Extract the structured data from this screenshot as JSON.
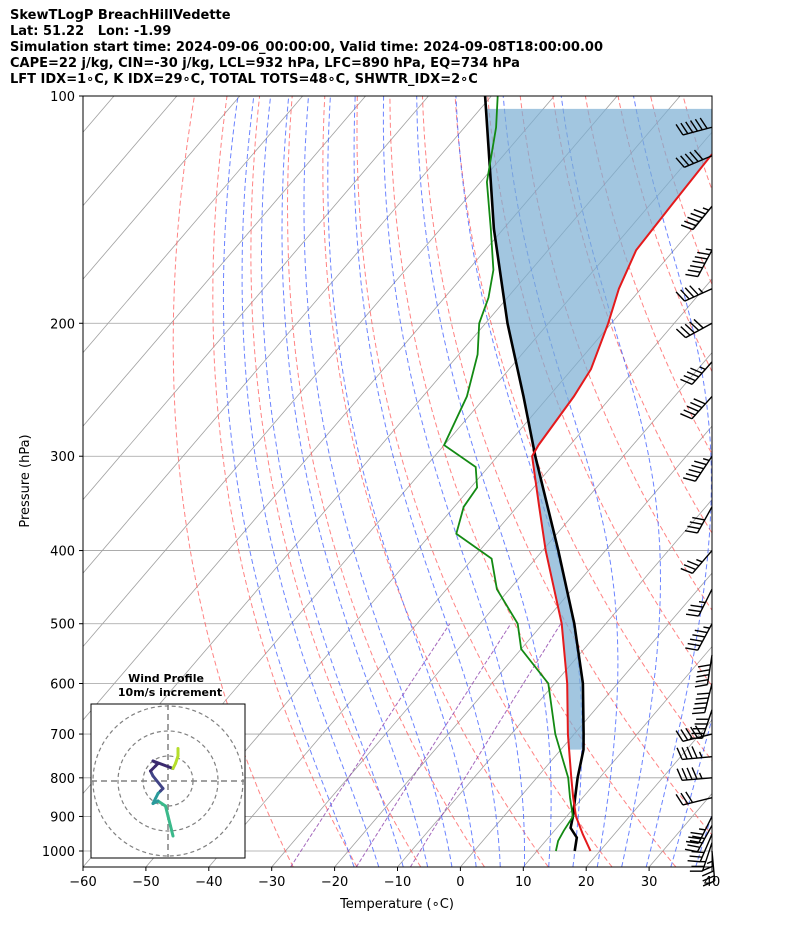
{
  "header": {
    "line1": "SkewTLogP BreachHillVedette",
    "line2": "Lat: 51.22   Lon: -1.99",
    "line3": "Simulation start time: 2024-09-06_00:00:00, Valid time: 2024-09-08T18:00:00.00",
    "line4": "CAPE=22 j/kg, CIN=-30 j/kg, LCL=932 hPa, LFC=890 hPa, EQ=734 hPa",
    "line5": "LFT IDX=1∘C, K IDX=29∘C, TOTAL TOTS=48∘C, SHWTR_IDX=2∘C"
  },
  "chart_data": {
    "type": "line",
    "subtype": "skew-t log-p",
    "xlabel": "Temperature (∘C)",
    "ylabel": "Pressure (hPa)",
    "xlim": [
      -60,
      40
    ],
    "ylim": [
      1050,
      100
    ],
    "x_ticks": [
      -60,
      -50,
      -40,
      -30,
      -20,
      -10,
      0,
      10,
      20,
      30,
      40
    ],
    "x_tick_labels": [
      "−60",
      "−50",
      "−40",
      "−30",
      "−20",
      "−10",
      "0",
      "10",
      "20",
      "30",
      "40"
    ],
    "y_ticks": [
      1000,
      900,
      800,
      700,
      600,
      500,
      400,
      300,
      200,
      100
    ],
    "y_scale": "log",
    "grid": true,
    "colors": {
      "temperature": "#e41a1c",
      "dewpoint": "#138a13",
      "parcel": "#000000",
      "cape_fill": "#7aaed3",
      "dry_adiabat": "#ff5a5a",
      "moist_adiabat": "#3b5bff",
      "mixing_ratio": "#8e44ad",
      "isotherm": "#a0a0a0"
    },
    "series": [
      {
        "key": "temperature",
        "points": [
          [
            1000,
            18.5
          ],
          [
            950,
            15.0
          ],
          [
            900,
            11.5
          ],
          [
            850,
            8.5
          ],
          [
            800,
            5.5
          ],
          [
            700,
            -1.0
          ],
          [
            600,
            -8.0
          ],
          [
            500,
            -17.0
          ],
          [
            400,
            -29.5
          ],
          [
            350,
            -36.5
          ],
          [
            300,
            -44.5
          ],
          [
            290,
            -45.0
          ],
          [
            250,
            -46.0
          ],
          [
            230,
            -47.0
          ],
          [
            200,
            -50.5
          ],
          [
            180,
            -53.5
          ],
          [
            160,
            -56.0
          ],
          [
            140,
            -56.5
          ],
          [
            120,
            -57.0
          ],
          [
            100,
            -56.5
          ]
        ]
      },
      {
        "key": "dewpoint",
        "points": [
          [
            1000,
            13.0
          ],
          [
            970,
            12.0
          ],
          [
            940,
            11.5
          ],
          [
            900,
            11.0
          ],
          [
            850,
            8.0
          ],
          [
            800,
            5.0
          ],
          [
            700,
            -3.0
          ],
          [
            600,
            -11.0
          ],
          [
            540,
            -20.0
          ],
          [
            500,
            -24.0
          ],
          [
            450,
            -32.0
          ],
          [
            410,
            -37.0
          ],
          [
            380,
            -46.0
          ],
          [
            350,
            -48.5
          ],
          [
            330,
            -49.0
          ],
          [
            310,
            -52.0
          ],
          [
            290,
            -60.0
          ],
          [
            250,
            -63.0
          ],
          [
            220,
            -67.0
          ],
          [
            200,
            -71.0
          ],
          [
            185,
            -73.0
          ],
          [
            170,
            -76.0
          ],
          [
            150,
            -82.0
          ],
          [
            130,
            -89.0
          ],
          [
            110,
            -95.0
          ],
          [
            100,
            -99.0
          ]
        ]
      },
      {
        "key": "parcel",
        "points": [
          [
            1000,
            16.0
          ],
          [
            960,
            14.5
          ],
          [
            932,
            12.2
          ],
          [
            900,
            11.0
          ],
          [
            850,
            8.8
          ],
          [
            800,
            6.5
          ],
          [
            734,
            3.6
          ],
          [
            700,
            1.5
          ],
          [
            600,
            -5.5
          ],
          [
            500,
            -15.0
          ],
          [
            400,
            -27.5
          ],
          [
            300,
            -44.0
          ],
          [
            250,
            -54.0
          ],
          [
            200,
            -66.5
          ],
          [
            150,
            -81.5
          ],
          [
            100,
            -101.0
          ]
        ]
      }
    ],
    "cape_region": "between parcel and temperature above EQ",
    "wind_barbs": [
      {
        "p": 1000,
        "u": 2,
        "v": -22
      },
      {
        "p": 975,
        "u": -4,
        "v": -12
      },
      {
        "p": 950,
        "u": -6,
        "v": -14
      },
      {
        "p": 925,
        "u": -10,
        "v": -18
      },
      {
        "p": 900,
        "u": -8,
        "v": -16
      },
      {
        "p": 850,
        "u": -16,
        "v": -4
      },
      {
        "p": 800,
        "u": -24,
        "v": -2
      },
      {
        "p": 750,
        "u": -22,
        "v": -2
      },
      {
        "p": 700,
        "u": -24,
        "v": -6
      },
      {
        "p": 650,
        "u": -8,
        "v": -24
      },
      {
        "p": 600,
        "u": -6,
        "v": -24
      },
      {
        "p": 550,
        "u": -4,
        "v": -26
      },
      {
        "p": 500,
        "u": -14,
        "v": -26
      },
      {
        "p": 450,
        "u": -8,
        "v": -16
      },
      {
        "p": 400,
        "u": -12,
        "v": -14
      },
      {
        "p": 350,
        "u": -10,
        "v": -18
      },
      {
        "p": 300,
        "u": -16,
        "v": -24
      },
      {
        "p": 250,
        "u": -18,
        "v": -20
      },
      {
        "p": 225,
        "u": -16,
        "v": -18
      },
      {
        "p": 200,
        "u": -22,
        "v": -12
      },
      {
        "p": 180,
        "u": -22,
        "v": -10
      },
      {
        "p": 160,
        "u": -16,
        "v": -30
      },
      {
        "p": 140,
        "u": -18,
        "v": -22
      },
      {
        "p": 120,
        "u": -24,
        "v": -10
      },
      {
        "p": 110,
        "u": -30,
        "v": -8
      }
    ],
    "inset": {
      "title": "Wind Profile",
      "subtitle": "10m/s increment",
      "colormap": [
        "#3bb98b",
        "#2a9a9b",
        "#414487",
        "#3b2a6e",
        "#b5de2b"
      ],
      "hodograph": [
        [
          2,
          -22
        ],
        [
          1,
          -18
        ],
        [
          0,
          -14
        ],
        [
          -1,
          -10
        ],
        [
          -4,
          -8
        ],
        [
          -6,
          -9
        ],
        [
          -5,
          -7
        ],
        [
          -4,
          -5
        ],
        [
          -3,
          -4
        ],
        [
          -2,
          -3
        ],
        [
          -6,
          2
        ],
        [
          -7,
          4
        ],
        [
          -5,
          6
        ],
        [
          -4,
          7
        ],
        [
          -6,
          8
        ],
        [
          2,
          5
        ],
        [
          3,
          7
        ],
        [
          4,
          10
        ],
        [
          4,
          13
        ]
      ]
    }
  }
}
